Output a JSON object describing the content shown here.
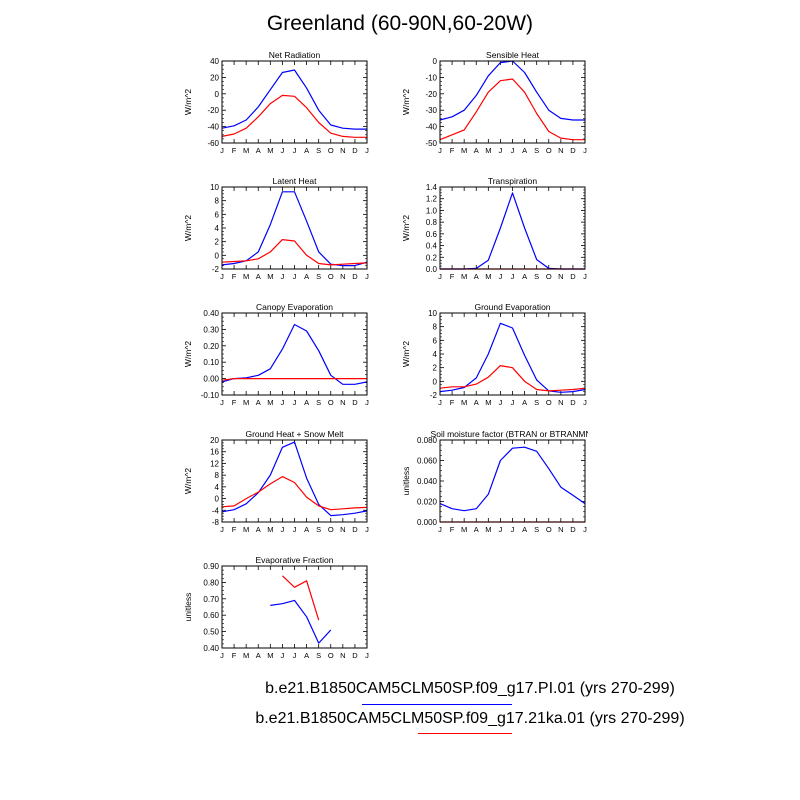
{
  "title": "Greenland (60-90N,60-20W)",
  "colors": {
    "series1": "#0000ff",
    "series2": "#ff0000"
  },
  "legend": {
    "entries": [
      {
        "name": "b.e21.B1850CAM5CLM50SP.f09_g17.PI.01 (yrs 270-299)",
        "color": "#0000ff"
      },
      {
        "name": "b.e21.B1850CAM5CLM50SP.f09_g17.21ka.01 (yrs 270-299)",
        "color": "#ff0000"
      }
    ]
  },
  "chart_data": [
    {
      "type": "line",
      "title": "Net Radiation",
      "ylabel": "W/m^2",
      "categories": [
        "J",
        "F",
        "M",
        "A",
        "M",
        "J",
        "J",
        "A",
        "S",
        "O",
        "N",
        "D",
        "J"
      ],
      "ylim": [
        -60,
        40
      ],
      "yticks": [
        -60,
        -40,
        -20,
        0,
        20,
        40
      ],
      "ytick_labels": [
        "-60",
        "-40",
        "-20",
        "0",
        "20",
        "40"
      ],
      "series": [
        {
          "name": "b.e21.B1850CAM5CLM50SP.f09_g17.PI.01 (yrs 270-299)",
          "color": "#0000ff",
          "values": [
            -42,
            -39,
            -32,
            -16,
            5,
            26,
            29,
            7,
            -20,
            -38,
            -42,
            -43,
            -43
          ]
        },
        {
          "name": "b.e21.B1850CAM5CLM50SP.f09_g17.21ka.01 (yrs 270-299)",
          "color": "#ff0000",
          "values": [
            -52,
            -49,
            -42,
            -28,
            -12,
            -2,
            -3,
            -17,
            -35,
            -48,
            -52,
            -53,
            -53
          ]
        }
      ]
    },
    {
      "type": "line",
      "title": "Sensible Heat",
      "ylabel": "W/m^2",
      "categories": [
        "J",
        "F",
        "M",
        "A",
        "M",
        "J",
        "J",
        "A",
        "S",
        "O",
        "N",
        "D",
        "J"
      ],
      "ylim": [
        -50,
        0
      ],
      "yticks": [
        -50,
        -40,
        -30,
        -20,
        -10,
        0
      ],
      "ytick_labels": [
        "-50",
        "-40",
        "-30",
        "-20",
        "-10",
        "0"
      ],
      "series": [
        {
          "name": "b.e21.B1850CAM5CLM50SP.f09_g17.PI.01 (yrs 270-299)",
          "color": "#0000ff",
          "values": [
            -36,
            -34,
            -30,
            -21,
            -9,
            -1,
            0,
            -7,
            -19,
            -30,
            -35,
            -36,
            -36
          ]
        },
        {
          "name": "b.e21.B1850CAM5CLM50SP.f09_g17.21ka.01 (yrs 270-299)",
          "color": "#ff0000",
          "values": [
            -48,
            -45,
            -42,
            -31,
            -19,
            -12,
            -11,
            -19,
            -32,
            -43,
            -47,
            -48,
            -48
          ]
        }
      ]
    },
    {
      "type": "line",
      "title": "Latent Heat",
      "ylabel": "W/m^2",
      "categories": [
        "J",
        "F",
        "M",
        "A",
        "M",
        "J",
        "J",
        "A",
        "S",
        "O",
        "N",
        "D",
        "J"
      ],
      "ylim": [
        -2,
        10
      ],
      "yticks": [
        -2,
        0,
        2,
        4,
        6,
        8,
        10
      ],
      "ytick_labels": [
        "-2",
        "0",
        "2",
        "4",
        "6",
        "8",
        "10"
      ],
      "series": [
        {
          "name": "b.e21.B1850CAM5CLM50SP.f09_g17.PI.01 (yrs 270-299)",
          "color": "#0000ff",
          "values": [
            -1.4,
            -1.2,
            -0.8,
            0.5,
            4.5,
            9.3,
            9.3,
            5.0,
            0.5,
            -1.3,
            -1.5,
            -1.5,
            -1.0
          ]
        },
        {
          "name": "b.e21.B1850CAM5CLM50SP.f09_g17.21ka.01 (yrs 270-299)",
          "color": "#ff0000",
          "values": [
            -1.0,
            -0.9,
            -0.8,
            -0.5,
            0.5,
            2.3,
            2.1,
            0,
            -1.2,
            -1.4,
            -1.3,
            -1.2,
            -1.1
          ]
        }
      ]
    },
    {
      "type": "line",
      "title": "Transpiration",
      "ylabel": "W/m^2",
      "categories": [
        "J",
        "F",
        "M",
        "A",
        "M",
        "J",
        "J",
        "A",
        "S",
        "O",
        "N",
        "D",
        "J"
      ],
      "ylim": [
        0,
        1.4
      ],
      "yticks": [
        0,
        0.2,
        0.4,
        0.6,
        0.8,
        1.0,
        1.2,
        1.4
      ],
      "ytick_labels": [
        "0.0",
        "0.2",
        "0.4",
        "0.6",
        "0.8",
        "1.0",
        "1.2",
        "1.4"
      ],
      "series": [
        {
          "name": "b.e21.B1850CAM5CLM50SP.f09_g17.PI.01 (yrs 270-299)",
          "color": "#0000ff",
          "values": [
            0,
            0,
            0,
            0.01,
            0.15,
            0.7,
            1.3,
            0.7,
            0.16,
            0.01,
            0,
            0,
            0
          ]
        },
        {
          "name": "b.e21.B1850CAM5CLM50SP.f09_g17.21ka.01 (yrs 270-299)",
          "color": "#ff0000",
          "values": [
            0,
            0,
            0,
            0,
            0,
            0,
            0,
            0,
            0,
            0,
            0,
            0,
            0
          ]
        }
      ]
    },
    {
      "type": "line",
      "title": "Canopy Evaporation",
      "ylabel": "W/m^2",
      "categories": [
        "J",
        "F",
        "M",
        "A",
        "M",
        "J",
        "J",
        "A",
        "S",
        "O",
        "N",
        "D",
        "J"
      ],
      "ylim": [
        -0.1,
        0.4
      ],
      "yticks": [
        -0.1,
        0,
        0.1,
        0.2,
        0.3,
        0.4
      ],
      "ytick_labels": [
        "-0.10",
        "0.00",
        "0.10",
        "0.20",
        "0.30",
        "0.40"
      ],
      "series": [
        {
          "name": "b.e21.B1850CAM5CLM50SP.f09_g17.PI.01 (yrs 270-299)",
          "color": "#0000ff",
          "values": [
            -0.02,
            0,
            0.005,
            0.02,
            0.06,
            0.18,
            0.33,
            0.29,
            0.17,
            0.02,
            -0.035,
            -0.035,
            -0.02
          ]
        },
        {
          "name": "b.e21.B1850CAM5CLM50SP.f09_g17.21ka.01 (yrs 270-299)",
          "color": "#ff0000",
          "values": [
            -0.01,
            0,
            0,
            0,
            0,
            0,
            0,
            0,
            0,
            0,
            0,
            0,
            0
          ]
        }
      ]
    },
    {
      "type": "line",
      "title": "Ground Evaporation",
      "ylabel": "W/m^2",
      "categories": [
        "J",
        "F",
        "M",
        "A",
        "M",
        "J",
        "J",
        "A",
        "S",
        "O",
        "N",
        "D",
        "J"
      ],
      "ylim": [
        -2,
        10
      ],
      "yticks": [
        -2,
        0,
        2,
        4,
        6,
        8,
        10
      ],
      "ytick_labels": [
        "-2",
        "0",
        "2",
        "4",
        "6",
        "8",
        "10"
      ],
      "series": [
        {
          "name": "b.e21.B1850CAM5CLM50SP.f09_g17.PI.01 (yrs 270-299)",
          "color": "#0000ff",
          "values": [
            -1.5,
            -1.3,
            -0.9,
            0.5,
            4.0,
            8.5,
            7.8,
            3.8,
            0.2,
            -1.4,
            -1.6,
            -1.5,
            -1.2
          ]
        },
        {
          "name": "b.e21.B1850CAM5CLM50SP.f09_g17.21ka.01 (yrs 270-299)",
          "color": "#ff0000",
          "values": [
            -1.0,
            -0.8,
            -0.8,
            -0.4,
            0.6,
            2.3,
            2.0,
            0,
            -1.2,
            -1.4,
            -1.3,
            -1.2,
            -1.0
          ]
        }
      ]
    },
    {
      "type": "line",
      "title": "Ground Heat + Snow Melt",
      "ylabel": "W/m^2",
      "categories": [
        "J",
        "F",
        "M",
        "A",
        "M",
        "J",
        "J",
        "A",
        "S",
        "O",
        "N",
        "D",
        "J"
      ],
      "ylim": [
        -8,
        20
      ],
      "yticks": [
        -8,
        -4,
        0,
        4,
        8,
        12,
        16,
        20
      ],
      "ytick_labels": [
        "-8",
        "-4",
        "0",
        "4",
        "8",
        "12",
        "16",
        "20"
      ],
      "series": [
        {
          "name": "b.e21.B1850CAM5CLM50SP.f09_g17.PI.01 (yrs 270-299)",
          "color": "#0000ff",
          "values": [
            -4.5,
            -3.8,
            -1.8,
            2,
            8,
            17.5,
            19.3,
            7,
            -2,
            -5.8,
            -5.5,
            -5,
            -4.2
          ]
        },
        {
          "name": "b.e21.B1850CAM5CLM50SP.f09_g17.21ka.01 (yrs 270-299)",
          "color": "#ff0000",
          "values": [
            -2.8,
            -2.5,
            0,
            2.2,
            5,
            7.5,
            5.5,
            0.5,
            -2.5,
            -3.8,
            -3.5,
            -3.2,
            -3
          ]
        }
      ]
    },
    {
      "type": "line",
      "title": "Soil moisture factor (BTRAN or BTRANMN)",
      "ylabel": "unitless",
      "categories": [
        "J",
        "F",
        "M",
        "A",
        "M",
        "J",
        "J",
        "A",
        "S",
        "O",
        "N",
        "D",
        "J"
      ],
      "ylim": [
        0,
        0.08
      ],
      "yticks": [
        0,
        0.02,
        0.04,
        0.06,
        0.08
      ],
      "ytick_labels": [
        "0.000",
        "0.020",
        "0.040",
        "0.060",
        "0.080"
      ],
      "series": [
        {
          "name": "b.e21.B1850CAM5CLM50SP.f09_g17.PI.01 (yrs 270-299)",
          "color": "#0000ff",
          "values": [
            0.018,
            0.013,
            0.011,
            0.013,
            0.027,
            0.06,
            0.072,
            0.073,
            0.069,
            0.052,
            0.034,
            0.026,
            0.018
          ]
        },
        {
          "name": "b.e21.B1850CAM5CLM50SP.f09_g17.21ka.01 (yrs 270-299)",
          "color": "#ff0000",
          "values": [
            0,
            0,
            0,
            0,
            0,
            0,
            0,
            0,
            0,
            0,
            0,
            0,
            0
          ]
        }
      ]
    },
    {
      "type": "line",
      "title": "Evaporative Fraction",
      "ylabel": "unitless",
      "categories": [
        "J",
        "F",
        "M",
        "A",
        "M",
        "J",
        "J",
        "A",
        "S",
        "O",
        "N",
        "D",
        "J"
      ],
      "ylim": [
        0.4,
        0.9
      ],
      "yticks": [
        0.4,
        0.5,
        0.6,
        0.7,
        0.8,
        0.9
      ],
      "ytick_labels": [
        "0.40",
        "0.50",
        "0.60",
        "0.70",
        "0.80",
        "0.90"
      ],
      "series": [
        {
          "name": "b.e21.B1850CAM5CLM50SP.f09_g17.PI.01 (yrs 270-299)",
          "color": "#0000ff",
          "values": [
            null,
            null,
            null,
            null,
            0.66,
            0.67,
            0.69,
            0.59,
            0.43,
            0.51,
            null,
            null,
            null
          ]
        },
        {
          "name": "b.e21.B1850CAM5CLM50SP.f09_g17.21ka.01 (yrs 270-299)",
          "color": "#ff0000",
          "values": [
            null,
            null,
            null,
            null,
            null,
            0.84,
            0.77,
            0.81,
            0.57,
            null,
            null,
            null,
            null
          ]
        }
      ]
    }
  ]
}
